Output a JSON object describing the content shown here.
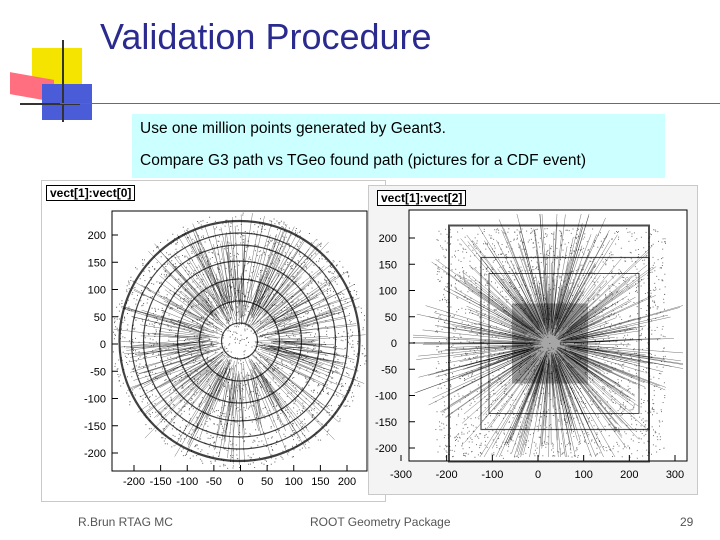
{
  "slide": {
    "title": "Validation Procedure",
    "bullets": [
      "Use one million points generated by Geant3.",
      "Compare G3 path vs TGeo found path (pictures for a CDF event)"
    ],
    "footer_left": "R.Brun RTAG MC",
    "footer_center": "ROOT Geometry Package",
    "page_number": "29"
  },
  "colors": {
    "title": "#2b2b8f",
    "textbox_bg": "#ccffff",
    "deco_yellow": "#f5e400",
    "deco_red": "#ff6f7f",
    "deco_blue": "#4b5cd8"
  },
  "panels": [
    {
      "title": "vect[1]:vect[0]",
      "x_ticks": [
        "-200",
        "-150",
        "-100",
        "-50",
        "0",
        "50",
        "100",
        "150",
        "200"
      ],
      "y_ticks": [
        "200",
        "150",
        "100",
        "50",
        "0",
        "-50",
        "-100",
        "-150",
        "-200"
      ]
    },
    {
      "title": "vect[1]:vect[2]",
      "x_ticks": [
        "-300",
        "-200",
        "-100",
        "0",
        "100",
        "200",
        "300"
      ],
      "y_ticks": [
        "200",
        "150",
        "100",
        "50",
        "0",
        "-50",
        "-100",
        "-150",
        "-200"
      ]
    }
  ]
}
